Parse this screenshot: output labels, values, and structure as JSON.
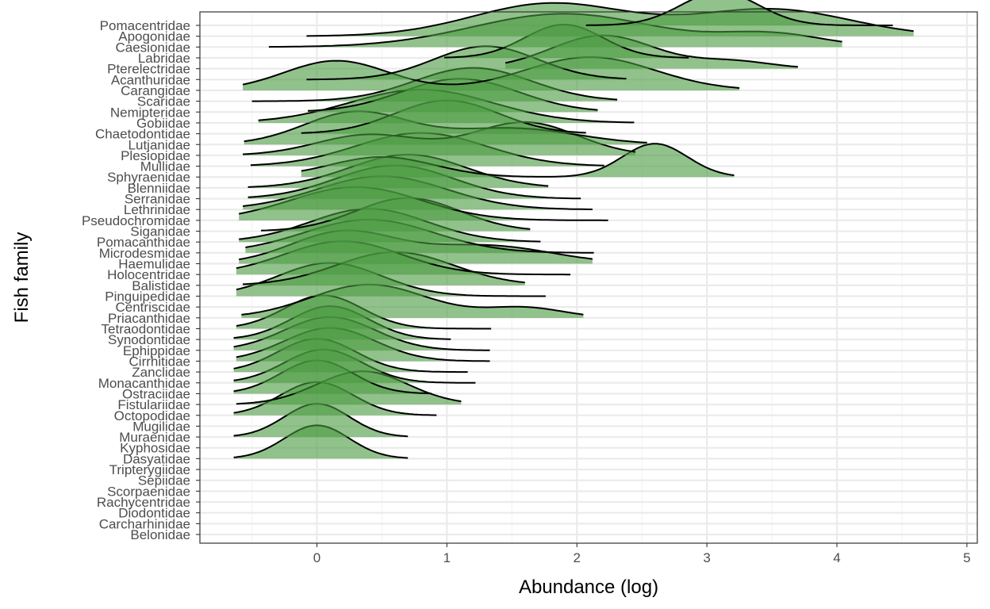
{
  "chart_data": {
    "type": "ridgeline",
    "xlabel": "Abundance (log)",
    "ylabel": "Fish family",
    "xlim": [
      -0.9,
      5.08
    ],
    "x_ticks": [
      0,
      1,
      2,
      3,
      4,
      5
    ],
    "grid": true,
    "legend": "none",
    "colors": {
      "fill": "#4a9a3f",
      "outline": "#000000",
      "panel_border": "#333333",
      "grid_major": "#ebebeb",
      "grid_minor": "#f3f3f3"
    },
    "families": [
      {
        "name": "Pomacentridae",
        "range": [
          2.07,
          4.43
        ],
        "peaks": [
          [
            3.1,
            0.3,
            1.0
          ]
        ]
      },
      {
        "name": "Apogonidae",
        "range": [
          -0.08,
          4.59
        ],
        "peaks": [
          [
            1.8,
            0.6,
            0.55
          ],
          [
            3.5,
            0.6,
            0.45
          ]
        ]
      },
      {
        "name": "Caesionidae",
        "range": [
          -0.37,
          4.04
        ],
        "peaks": [
          [
            1.9,
            0.7,
            0.8
          ],
          [
            3.5,
            0.4,
            0.3
          ]
        ]
      },
      {
        "name": "Labridae",
        "range": [
          0.98,
          2.86
        ],
        "peaks": [
          [
            1.9,
            0.3,
            1.0
          ]
        ]
      },
      {
        "name": "Pterelectridae",
        "range": [
          1.45,
          3.7
        ],
        "peaks": [
          [
            2.2,
            0.4,
            0.9
          ],
          [
            3.2,
            0.3,
            0.2
          ]
        ]
      },
      {
        "name": "Acanthuridae",
        "range": [
          -0.08,
          2.38
        ],
        "peaks": [
          [
            1.3,
            0.4,
            1.0
          ]
        ]
      },
      {
        "name": "Carangidae",
        "range": [
          -0.57,
          3.25
        ],
        "peaks": [
          [
            0.15,
            0.4,
            0.4
          ],
          [
            2.1,
            0.5,
            0.45
          ]
        ]
      },
      {
        "name": "Scaridae",
        "range": [
          -0.5,
          2.31
        ],
        "peaks": [
          [
            1.2,
            0.45,
            1.0
          ]
        ]
      },
      {
        "name": "Nemipteridae",
        "range": [
          -0.07,
          2.16
        ],
        "peaks": [
          [
            1.1,
            0.45,
            1.0
          ]
        ]
      },
      {
        "name": "Gobiidae",
        "range": [
          -0.45,
          2.44
        ],
        "peaks": [
          [
            0.8,
            0.55,
            1.0
          ]
        ]
      },
      {
        "name": "Chaetodontidae",
        "range": [
          -0.12,
          2.07
        ],
        "peaks": [
          [
            1.0,
            0.4,
            1.0
          ]
        ]
      },
      {
        "name": "Lutjanidae",
        "range": [
          -0.56,
          2.54
        ],
        "peaks": [
          [
            0.3,
            0.4,
            1.0
          ],
          [
            1.5,
            0.5,
            0.5
          ]
        ]
      },
      {
        "name": "Plesiopidae",
        "range": [
          -0.57,
          2.45
        ],
        "peaks": [
          [
            0.4,
            0.4,
            0.5
          ],
          [
            1.6,
            0.4,
            0.8
          ]
        ]
      },
      {
        "name": "Mullidae",
        "range": [
          -0.51,
          2.21
        ],
        "peaks": [
          [
            0.8,
            0.5,
            1.0
          ]
        ]
      },
      {
        "name": "Sphyraenidae",
        "range": [
          -0.12,
          3.21
        ],
        "peaks": [
          [
            0.5,
            0.4,
            0.6
          ],
          [
            2.6,
            0.25,
            1.0
          ]
        ]
      },
      {
        "name": "Blenniidae",
        "range": [
          -0.53,
          1.78
        ],
        "peaks": [
          [
            0.7,
            0.45,
            1.0
          ]
        ]
      },
      {
        "name": "Serranidae",
        "range": [
          -0.53,
          2.03
        ],
        "peaks": [
          [
            0.6,
            0.45,
            1.0
          ]
        ]
      },
      {
        "name": "Lethrinidae",
        "range": [
          -0.57,
          2.12
        ],
        "peaks": [
          [
            0.5,
            0.5,
            1.0
          ]
        ]
      },
      {
        "name": "Pseudochromidae",
        "range": [
          -0.6,
          2.24
        ],
        "peaks": [
          [
            0.3,
            0.5,
            1.0
          ]
        ]
      },
      {
        "name": "Siganidae",
        "range": [
          -0.43,
          1.64
        ],
        "peaks": [
          [
            0.7,
            0.4,
            1.0
          ]
        ]
      },
      {
        "name": "Pomacanthidae",
        "range": [
          -0.6,
          1.72
        ],
        "peaks": [
          [
            0.4,
            0.45,
            1.0
          ]
        ]
      },
      {
        "name": "Microdesmidae",
        "range": [
          -0.55,
          2.13
        ],
        "peaks": [
          [
            0.4,
            0.5,
            1.0
          ]
        ]
      },
      {
        "name": "Haemulidae",
        "range": [
          -0.6,
          2.12
        ],
        "peaks": [
          [
            0.2,
            0.4,
            0.7
          ],
          [
            1.3,
            0.5,
            0.4
          ]
        ]
      },
      {
        "name": "Holocentridae",
        "range": [
          -0.62,
          1.95
        ],
        "peaks": [
          [
            0.2,
            0.45,
            1.0
          ]
        ]
      },
      {
        "name": "Balistidae",
        "range": [
          -0.57,
          1.6
        ],
        "peaks": [
          [
            0.6,
            0.45,
            1.0
          ]
        ]
      },
      {
        "name": "Pinguipedidae",
        "range": [
          -0.62,
          1.76
        ],
        "peaks": [
          [
            0.1,
            0.4,
            1.0
          ]
        ]
      },
      {
        "name": "Centriscidae"
      },
      {
        "name": "Priacanthidae",
        "range": [
          -0.58,
          2.05
        ],
        "peaks": [
          [
            0.4,
            0.45,
            1.0
          ],
          [
            1.6,
            0.3,
            0.3
          ]
        ]
      },
      {
        "name": "Tetraodontidae",
        "range": [
          -0.62,
          1.34
        ],
        "peaks": [
          [
            0.05,
            0.3,
            1.0
          ]
        ]
      },
      {
        "name": "Synodontidae",
        "range": [
          -0.64,
          1.03
        ],
        "peaks": [
          [
            0.1,
            0.3,
            1.0
          ]
        ]
      },
      {
        "name": "Ephippidae",
        "range": [
          -0.64,
          1.33
        ],
        "peaks": [
          [
            0.1,
            0.35,
            1.0
          ]
        ]
      },
      {
        "name": "Cirrhitidae",
        "range": [
          -0.62,
          1.33
        ],
        "peaks": [
          [
            0.1,
            0.35,
            1.0
          ]
        ]
      },
      {
        "name": "Zanclidae",
        "range": [
          -0.64,
          1.16
        ],
        "peaks": [
          [
            0.0,
            0.3,
            1.0
          ]
        ]
      },
      {
        "name": "Monacanthidae",
        "range": [
          -0.64,
          1.22
        ],
        "peaks": [
          [
            0.05,
            0.3,
            1.0
          ]
        ]
      },
      {
        "name": "Ostraciidae",
        "range": [
          -0.64,
          0.88
        ],
        "peaks": [
          [
            0.0,
            0.28,
            1.0
          ]
        ]
      },
      {
        "name": "Fistulariidae",
        "range": [
          -0.62,
          1.11
        ],
        "peaks": [
          [
            0.35,
            0.35,
            1.0
          ]
        ]
      },
      {
        "name": "Octopodidae",
        "range": [
          -0.64,
          0.92
        ],
        "peaks": [
          [
            0.0,
            0.28,
            1.0
          ]
        ]
      },
      {
        "name": "Mugilidae"
      },
      {
        "name": "Muraenidae",
        "range": [
          -0.64,
          0.7
        ],
        "peaks": [
          [
            0.0,
            0.25,
            1.0
          ]
        ]
      },
      {
        "name": "Kyphosidae"
      },
      {
        "name": "Dasyatidae",
        "range": [
          -0.64,
          0.7
        ],
        "peaks": [
          [
            0.0,
            0.25,
            1.0
          ]
        ]
      },
      {
        "name": "Tripterygiidae"
      },
      {
        "name": "Sepiidae"
      },
      {
        "name": "Scorpaenidae"
      },
      {
        "name": "Rachycentridae"
      },
      {
        "name": "Diodontidae"
      },
      {
        "name": "Carcharhinidae"
      },
      {
        "name": "Belonidae"
      }
    ]
  }
}
